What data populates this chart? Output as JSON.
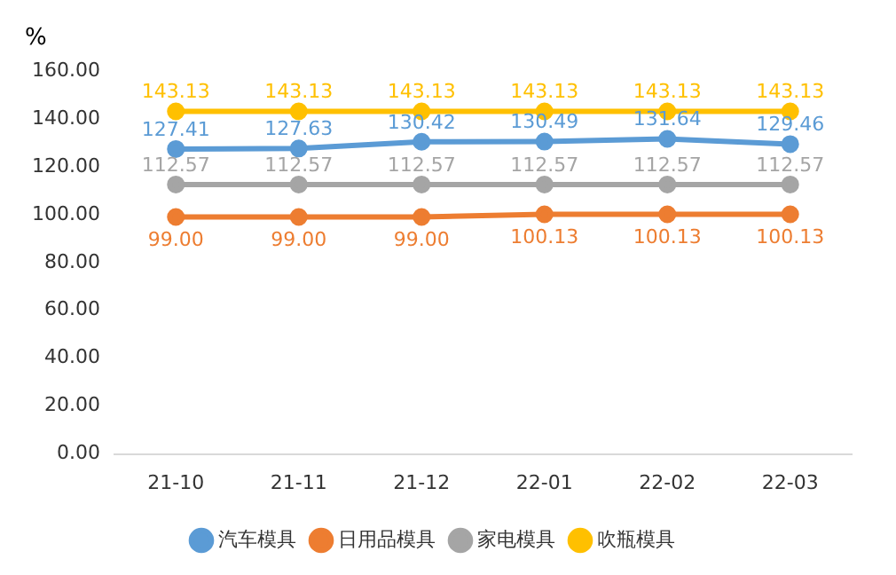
{
  "chart_data": {
    "type": "line",
    "ylabel": "%",
    "categories": [
      "21-10",
      "21-11",
      "21-12",
      "22-01",
      "22-02",
      "22-03"
    ],
    "series": [
      {
        "name": "汽车模具",
        "color": "#5b9bd5",
        "values": [
          127.41,
          127.63,
          130.42,
          130.49,
          131.64,
          129.46
        ],
        "value_labels": [
          "127.41",
          "127.63",
          "130.42",
          "130.49",
          "131.64",
          "129.46"
        ]
      },
      {
        "name": "日用品模具",
        "color": "#ed7d31",
        "values": [
          99.0,
          99.0,
          99.0,
          100.13,
          100.13,
          100.13
        ],
        "value_labels": [
          "99.00",
          "99.00",
          "99.00",
          "100.13",
          "100.13",
          "100.13"
        ]
      },
      {
        "name": "家电模具",
        "color": "#a5a5a5",
        "values": [
          112.57,
          112.57,
          112.57,
          112.57,
          112.57,
          112.57
        ],
        "value_labels": [
          "112.57",
          "112.57",
          "112.57",
          "112.57",
          "112.57",
          "112.57"
        ]
      },
      {
        "name": "吹瓶模具",
        "color": "#ffc000",
        "values": [
          143.13,
          143.13,
          143.13,
          143.13,
          143.13,
          143.13
        ],
        "value_labels": [
          "143.13",
          "143.13",
          "143.13",
          "143.13",
          "143.13",
          "143.13"
        ]
      }
    ],
    "ylim": [
      0,
      160
    ],
    "yticks": [
      {
        "value": 0,
        "label": "0.00"
      },
      {
        "value": 20,
        "label": "20.00"
      },
      {
        "value": 40,
        "label": "40.00"
      },
      {
        "value": 60,
        "label": "60.00"
      },
      {
        "value": 80,
        "label": "80.00"
      },
      {
        "value": 100,
        "label": "100.00"
      },
      {
        "value": 120,
        "label": "120.00"
      },
      {
        "value": 140,
        "label": "140.00"
      },
      {
        "value": 160,
        "label": "160.00"
      }
    ],
    "grid": false,
    "legend": "bottom",
    "marker": "circle",
    "line_style": "solid"
  }
}
